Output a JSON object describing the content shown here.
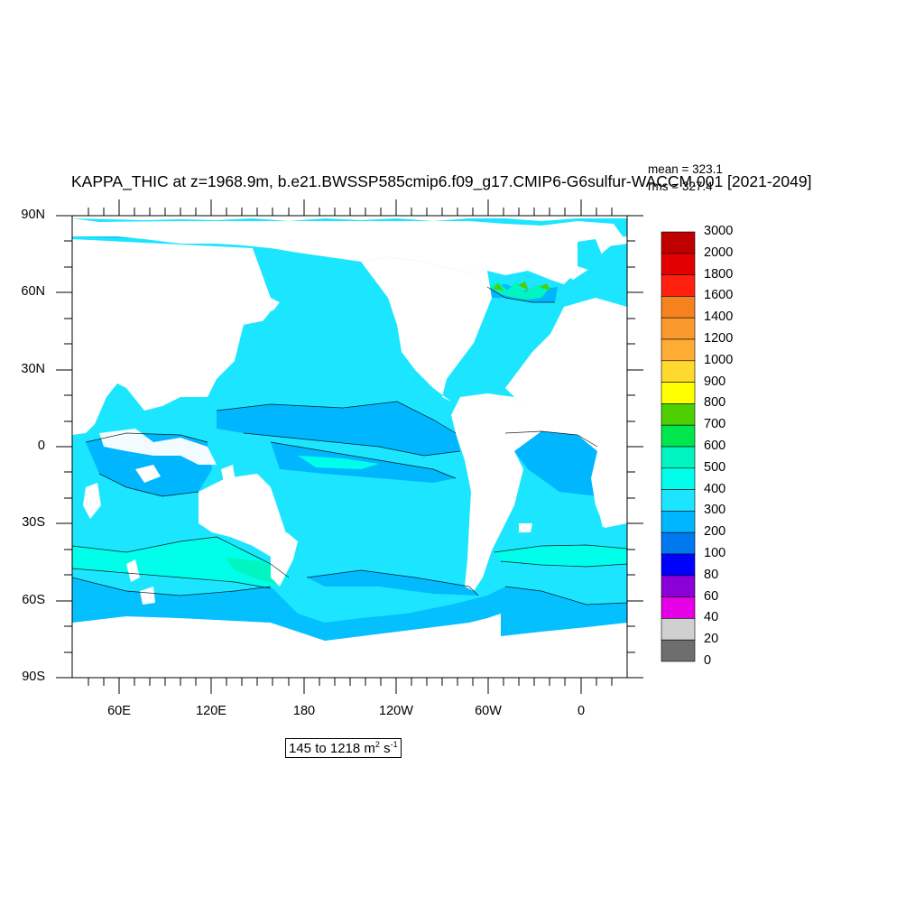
{
  "title": "KAPPA_THIC at z=1968.9m, b.e21.BWSSP585cmip6.f09_g17.CMIP6-G6sulfur-WACCM.001 [2021-2049]",
  "stats": {
    "mean": "mean = 323.1",
    "rms": "rms = 327.4"
  },
  "range_box": {
    "text": "145 to 1218 m",
    "unit_exp1": "2",
    "unit_s": " s",
    "unit_exp2": "-1"
  },
  "lat_labels": [
    "90N",
    "60N",
    "30N",
    "0",
    "30S",
    "60S",
    "90S"
  ],
  "lon_labels": [
    "60E",
    "120E",
    "180",
    "120W",
    "60W",
    "0"
  ],
  "colorbar": {
    "labels": [
      "3000",
      "2000",
      "1800",
      "1600",
      "1400",
      "1200",
      "1000",
      "900",
      "800",
      "700",
      "600",
      "500",
      "400",
      "300",
      "200",
      "100",
      "80",
      "60",
      "40",
      "20",
      "0"
    ],
    "colors": [
      "#c00000",
      "#e20000",
      "#ff2010",
      "#f5821e",
      "#fb9a2c",
      "#ffac34",
      "#ffd92e",
      "#ffff00",
      "#4ed000",
      "#00e64c",
      "#00f5c0",
      "#00ffea",
      "#1ce6ff",
      "#00b6ff",
      "#0078f0",
      "#0000ff",
      "#8a00d6",
      "#e600e6",
      "#d0d0d0",
      "#6e6e6e"
    ]
  },
  "map_colors": {
    "ocean_400": "#1ce6ff",
    "ocean_300": "#00b6ff",
    "ocean_500": "#00ffea",
    "ocean_600": "#00f5c0",
    "ocean_200": "#0078f0",
    "land": "#ffffff"
  }
}
